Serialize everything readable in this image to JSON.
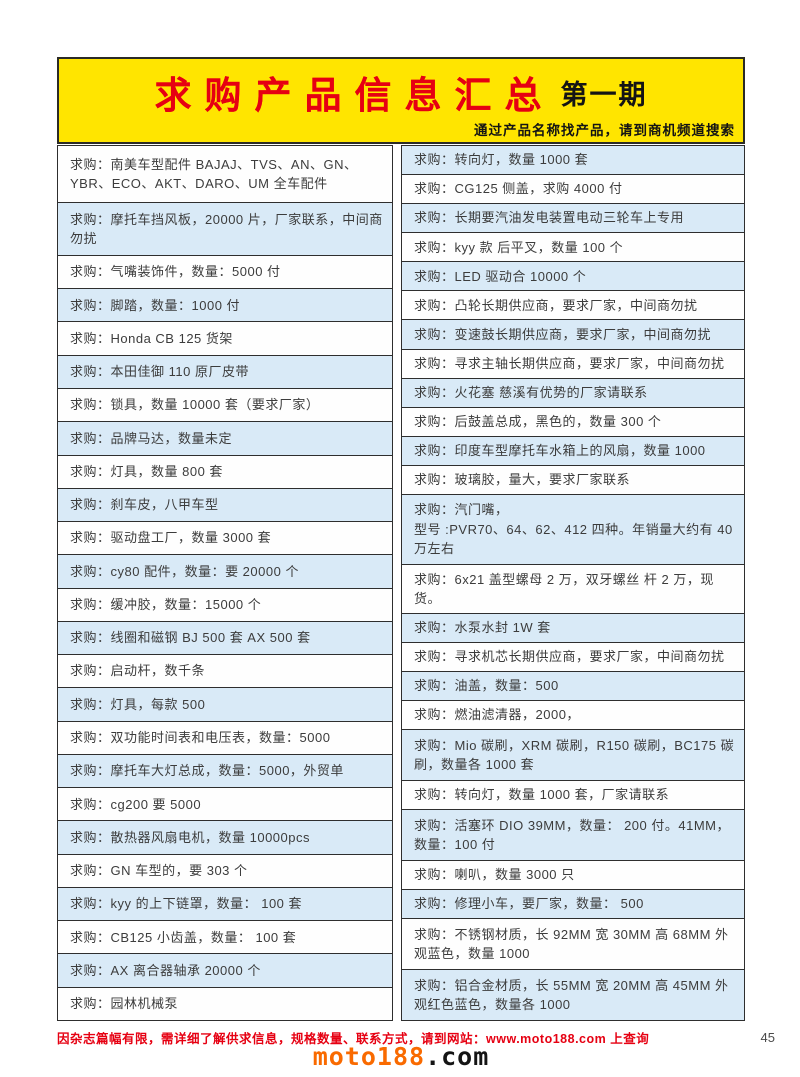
{
  "colors": {
    "banner_yellow": "#ffe500",
    "title_red": "#e60012",
    "row_blue": "#d9eaf7",
    "logo_orange": "#f96a00",
    "border_dark": "#2e2e2e"
  },
  "banner": {
    "title": "求购产品信息汇总",
    "issue": "第一期",
    "subtitle": "通过产品名称找产品，请到商机频道搜索"
  },
  "footer": {
    "notice": "因杂志篇幅有限，需详细了解供求信息，规格数量、联系方式，请到网站：www.moto188.com 上查询",
    "logo_name": "moto188",
    "logo_tld": ".com",
    "page_number": "45"
  },
  "table": {
    "label": "求购：",
    "left": [
      {
        "text": "南美车型配件 BAJAJ、TVS、AN、GN、YBR、ECO、AKT、DARO、UM 全车配件",
        "tall": true
      },
      {
        "text": "摩托车挡风板，20000 片，厂家联系，中间商勿扰",
        "tall": false
      },
      {
        "text": "气嘴装饰件，数量：5000 付",
        "tall": false
      },
      {
        "text": "脚踏，数量：1000 付",
        "tall": false
      },
      {
        "text": "Honda CB 125 货架",
        "tall": false
      },
      {
        "text": "本田佳御 110 原厂皮带",
        "tall": false
      },
      {
        "text": "锁具，数量 10000 套（要求厂家）",
        "tall": false
      },
      {
        "text": "品牌马达，数量未定",
        "tall": false
      },
      {
        "text": "灯具，数量 800 套",
        "tall": false
      },
      {
        "text": "刹车皮，八甲车型",
        "tall": false
      },
      {
        "text": "驱动盘工厂，数量 3000 套",
        "tall": false
      },
      {
        "text": "cy80 配件，数量：要 20000 个",
        "tall": false
      },
      {
        "text": "缓冲胶，数量：15000 个",
        "tall": false
      },
      {
        "text": "线圈和磁钢 BJ 500 套 AX 500 套",
        "tall": false
      },
      {
        "text": "启动杆，数千条",
        "tall": false
      },
      {
        "text": "灯具，每款 500",
        "tall": false
      },
      {
        "text": "双功能时间表和电压表，数量：5000",
        "tall": false
      },
      {
        "text": "摩托车大灯总成，数量：5000，外贸单",
        "tall": false
      },
      {
        "text": "cg200 要 5000",
        "tall": false
      },
      {
        "text": "散热器风扇电机，数量 10000pcs",
        "tall": false
      },
      {
        "text": "GN 车型的，要 303 个",
        "tall": false
      },
      {
        "text": "kyy 的上下链罩，数量： 100 套",
        "tall": false
      },
      {
        "text": "CB125 小齿盖，数量： 100 套",
        "tall": false
      },
      {
        "text": "AX 离合器轴承 20000 个",
        "tall": false
      },
      {
        "text": "园林机械泵",
        "tall": false
      }
    ],
    "right": [
      {
        "text": "转向灯，数量 1000 套",
        "tall": false
      },
      {
        "text": "CG125 侧盖，求购 4000 付",
        "tall": false
      },
      {
        "text": "长期要汽油发电装置电动三轮车上专用",
        "tall": false
      },
      {
        "text": "kyy 款 后平叉，数量 100 个",
        "tall": false
      },
      {
        "text": "LED 驱动合 10000 个",
        "tall": false
      },
      {
        "text": "凸轮长期供应商，要求厂家，中间商勿扰",
        "tall": false
      },
      {
        "text": "变速鼓长期供应商，要求厂家，中间商勿扰",
        "tall": false
      },
      {
        "text": "寻求主轴长期供应商，要求厂家，中间商勿扰",
        "tall": false
      },
      {
        "text": "火花塞 慈溪有优势的厂家请联系",
        "tall": false
      },
      {
        "text": "后鼓盖总成，黑色的，数量 300 个",
        "tall": false
      },
      {
        "text": "印度车型摩托车水箱上的风扇，数量 1000",
        "tall": false
      },
      {
        "text": "玻璃胶，量大，要求厂家联系",
        "tall": false
      },
      {
        "text": "汽门嘴，\n型号 :PVR70、64、62、412 四种。年销量大约有 40 万左右",
        "tall": true
      },
      {
        "text": "6x21 盖型螺母 2 万，双牙螺丝 杆 2 万，现货。",
        "tall": false
      },
      {
        "text": "水泵水封 1W 套",
        "tall": false
      },
      {
        "text": "寻求机芯长期供应商，要求厂家，中间商勿扰",
        "tall": false
      },
      {
        "text": "油盖，数量：500",
        "tall": false
      },
      {
        "text": "燃油滤清器，2000，",
        "tall": false
      },
      {
        "text": "Mio 碳刷，XRM 碳刷，R150 碳刷，BC175 碳刷，数量各 1000 套",
        "tall": true
      },
      {
        "text": "转向灯，数量 1000 套，厂家请联系",
        "tall": false
      },
      {
        "text": "活塞环 DIO 39MM，数量： 200 付。41MM，数量：100 付",
        "tall": true
      },
      {
        "text": "喇叭，数量 3000 只",
        "tall": false
      },
      {
        "text": "修理小车，要厂家，数量： 500",
        "tall": false
      },
      {
        "text": "不锈钢材质，长 92MM 宽 30MM 高 68MM 外观蓝色，数量 1000",
        "tall": true
      },
      {
        "text": "铝合金材质，长 55MM 宽 20MM 高 45MM 外观红色蓝色，数量各 1000",
        "tall": true
      }
    ]
  }
}
